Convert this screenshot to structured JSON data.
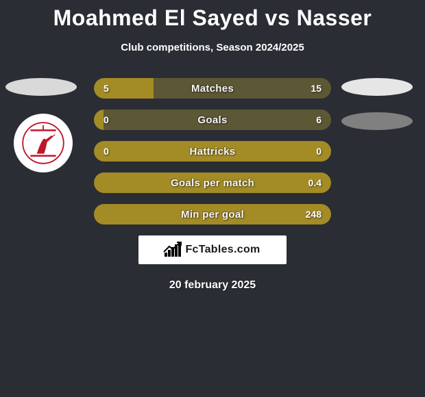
{
  "title": "Moahmed El Sayed vs Nasser",
  "subtitle": "Club competitions, Season 2024/2025",
  "background_color": "#2a2d33",
  "left_color": "#a38b26",
  "right_color": "#5c5836",
  "bar_track_color": "#5c5836",
  "text_color": "#ffffff",
  "title_fontsize": 32,
  "subtitle_fontsize": 15,
  "stat_label_fontsize": 15,
  "stat_value_fontsize": 14,
  "left_oval_color": "#d9d9d9",
  "right_oval1_color": "#e6e6e6",
  "right_oval2_color": "#808080",
  "avatar_bg": "#ffffff",
  "club_logo_primary": "#c0152a",
  "branding_text": "FcTables.com",
  "branding_bg": "#ffffff",
  "branding_text_color": "#1a1a1a",
  "date_text": "20 february 2025",
  "stats": [
    {
      "label": "Matches",
      "left_value": "5",
      "right_value": "15",
      "left_pct": 25,
      "right_pct": 75
    },
    {
      "label": "Goals",
      "left_value": "0",
      "right_value": "6",
      "left_pct": 4,
      "right_pct": 96
    },
    {
      "label": "Hattricks",
      "left_value": "0",
      "right_value": "0",
      "left_pct": 50,
      "right_pct": 50
    },
    {
      "label": "Goals per match",
      "left_value": "",
      "right_value": "0.4",
      "left_pct": 0,
      "right_pct": 100
    },
    {
      "label": "Min per goal",
      "left_value": "",
      "right_value": "248",
      "left_pct": 0,
      "right_pct": 100
    }
  ]
}
